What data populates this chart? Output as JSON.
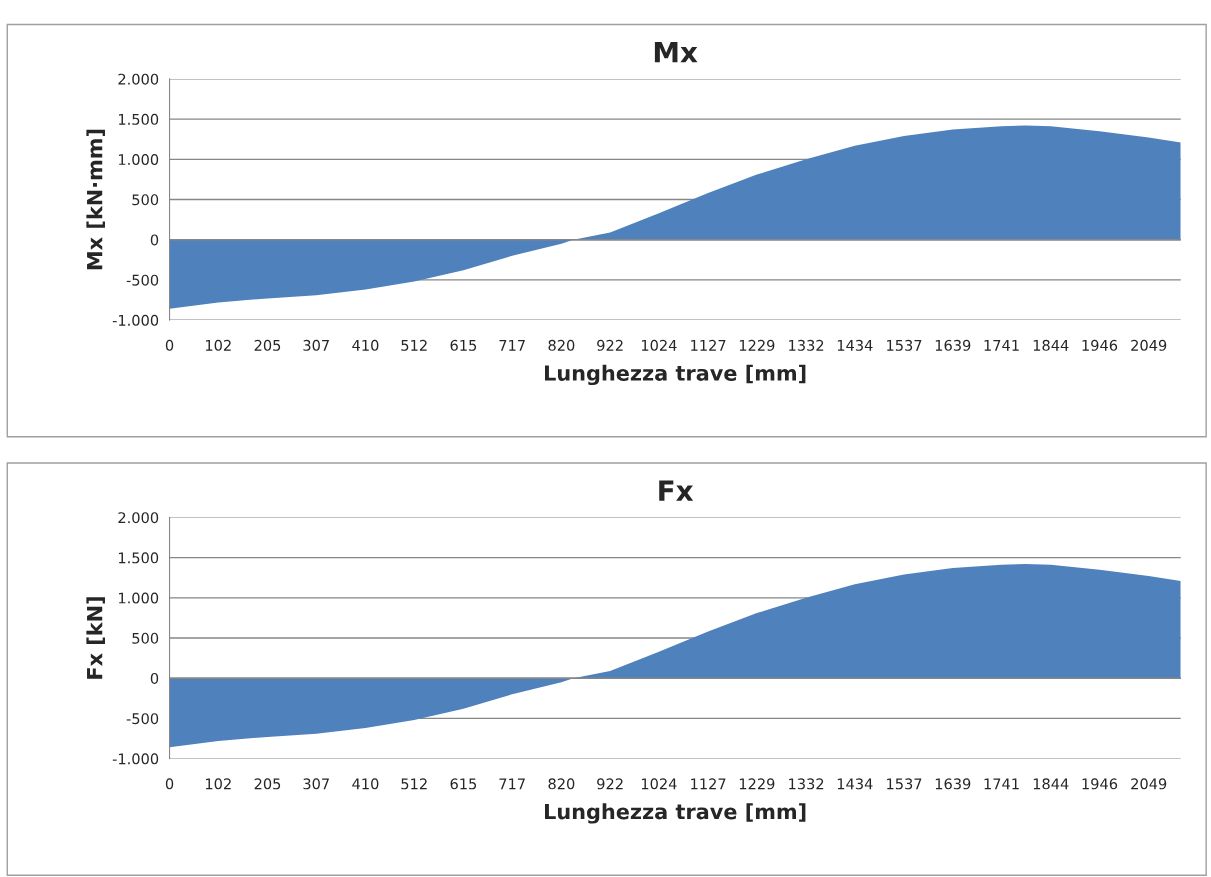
{
  "chart_data": [
    {
      "type": "area",
      "title": "Mx",
      "xlabel": "Lunghezza trave [mm]",
      "ylabel": "Mx [kN·mm]",
      "x": [
        0,
        102,
        205,
        307,
        410,
        512,
        615,
        717,
        820,
        845,
        922,
        1024,
        1127,
        1229,
        1332,
        1434,
        1537,
        1639,
        1741,
        1791,
        1844,
        1946,
        2049,
        2116
      ],
      "series": [
        {
          "color": "#4f81bd",
          "values": [
            -860,
            -780,
            -730,
            -690,
            -620,
            -520,
            -380,
            -200,
            -50,
            0,
            90,
            330,
            580,
            810,
            1000,
            1170,
            1290,
            1370,
            1410,
            1420,
            1410,
            1350,
            1270,
            1210
          ]
        }
      ],
      "xlim": [
        0,
        2116
      ],
      "xticks": [
        0,
        102,
        205,
        307,
        410,
        512,
        615,
        717,
        820,
        922,
        1024,
        1127,
        1229,
        1332,
        1434,
        1537,
        1639,
        1741,
        1844,
        1946,
        2049
      ],
      "ylim": [
        -1000,
        2000
      ],
      "yticks": [
        {
          "value": -1000,
          "label": "-1.000"
        },
        {
          "value": -500,
          "label": "-500"
        },
        0,
        500,
        {
          "value": 1000,
          "label": "1.000"
        },
        {
          "value": 1500,
          "label": "1.500"
        },
        {
          "value": 2000,
          "label": "2.000"
        }
      ],
      "grid": "y",
      "legend": false
    },
    {
      "type": "area",
      "title": "Fx",
      "xlabel": "Lunghezza trave [mm]",
      "ylabel": "Fx [kN]",
      "x": [
        0,
        102,
        205,
        307,
        410,
        512,
        615,
        717,
        820,
        845,
        922,
        1024,
        1127,
        1229,
        1332,
        1434,
        1537,
        1639,
        1741,
        1791,
        1844,
        1946,
        2049,
        2116
      ],
      "series": [
        {
          "color": "#4f81bd",
          "values": [
            -860,
            -780,
            -730,
            -690,
            -620,
            -520,
            -380,
            -200,
            -50,
            0,
            90,
            330,
            580,
            810,
            1000,
            1170,
            1290,
            1370,
            1410,
            1420,
            1410,
            1350,
            1270,
            1210
          ]
        }
      ],
      "xlim": [
        0,
        2116
      ],
      "xticks": [
        0,
        102,
        205,
        307,
        410,
        512,
        615,
        717,
        820,
        922,
        1024,
        1127,
        1229,
        1332,
        1434,
        1537,
        1639,
        1741,
        1844,
        1946,
        2049
      ],
      "ylim": [
        -1000,
        2000
      ],
      "yticks": [
        {
          "value": -1000,
          "label": "-1.000"
        },
        {
          "value": -500,
          "label": "-500"
        },
        0,
        500,
        {
          "value": 1000,
          "label": "1.000"
        },
        {
          "value": 1500,
          "label": "1.500"
        },
        {
          "value": 2000,
          "label": "2.000"
        }
      ],
      "grid": "y",
      "legend": false
    }
  ]
}
